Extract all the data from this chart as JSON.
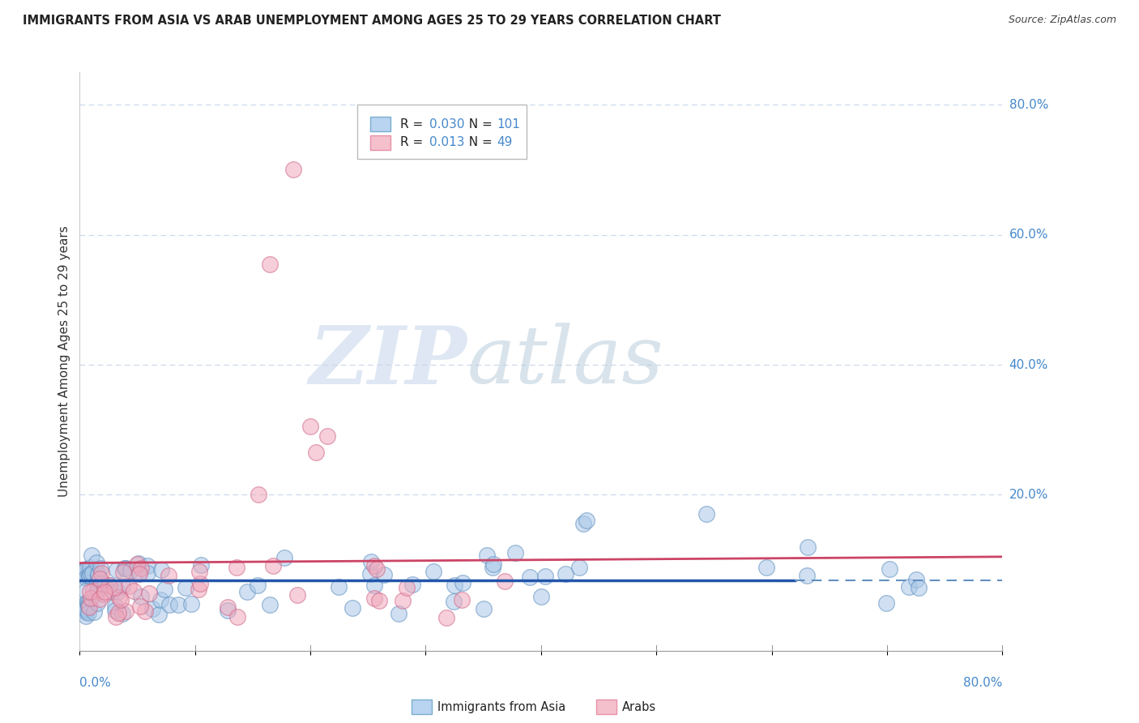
{
  "title": "IMMIGRANTS FROM ASIA VS ARAB UNEMPLOYMENT AMONG AGES 25 TO 29 YEARS CORRELATION CHART",
  "source": "Source: ZipAtlas.com",
  "ylabel": "Unemployment Among Ages 25 to 29 years",
  "legend_asia": {
    "R": "0.030",
    "N": "101",
    "fill": "#b8d4f0",
    "edge": "#7aaed0"
  },
  "legend_arab": {
    "R": "0.013",
    "N": "49",
    "fill": "#f4c0cc",
    "edge": "#e890a8"
  },
  "watermark_zip": "ZIP",
  "watermark_atlas": "atlas",
  "background_color": "#ffffff",
  "grid_color": "#c8d8ec",
  "asia_fill": "#aac8e8",
  "asia_edge": "#6090c0",
  "arab_fill": "#f0a8bc",
  "arab_edge": "#d06888",
  "asia_line_color": "#2255aa",
  "arab_line_color": "#cc4466",
  "right_label_color": "#4488cc",
  "xlim": [
    0.0,
    0.8
  ],
  "ylim": [
    -0.04,
    0.85
  ],
  "ytick_vals": [
    0.8,
    0.6,
    0.4,
    0.2
  ],
  "ytick_labels": [
    "80.0%",
    "60.0%",
    "40.0%",
    "20.0%"
  ],
  "xtick_labels_left": "0.0%",
  "xtick_labels_right": "80.0%"
}
